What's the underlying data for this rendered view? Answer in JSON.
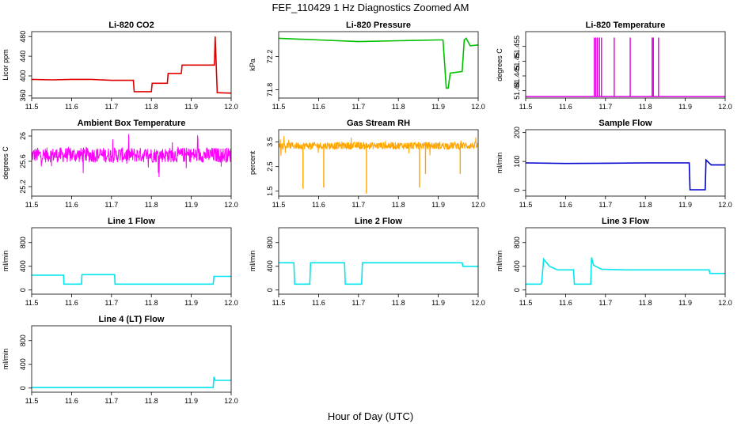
{
  "figure": {
    "title": "FEF_110429 1 Hz Diagnostics Zoomed AM",
    "xlabel": "Hour of Day (UTC)"
  },
  "chart_data": [
    {
      "type": "line",
      "title": "Li-820 CO2",
      "ylabel": "Licor ppm",
      "color": "#e00000",
      "xlim": [
        11.5,
        12.0
      ],
      "ylim": [
        355,
        490
      ],
      "xticks": [
        "11.5",
        "11.6",
        "11.7",
        "11.8",
        "11.9",
        "12.0"
      ],
      "yticks": [
        360,
        400,
        440,
        480
      ],
      "x": [
        11.5,
        11.55,
        11.6,
        11.65,
        11.7,
        11.755,
        11.757,
        11.8,
        11.802,
        11.84,
        11.842,
        11.875,
        11.877,
        11.958,
        11.96,
        11.965,
        12.0
      ],
      "y": [
        393,
        392,
        393,
        393,
        391,
        391,
        368,
        368,
        385,
        385,
        405,
        405,
        422,
        422,
        480,
        366,
        365
      ]
    },
    {
      "type": "line",
      "title": "Li-820 Pressure",
      "ylabel": "kPa",
      "color": "#00c000",
      "xlim": [
        11.5,
        12.0
      ],
      "ylim": [
        71.7,
        72.5
      ],
      "xticks": [
        "11.5",
        "11.6",
        "11.7",
        "11.8",
        "11.9",
        "12.0"
      ],
      "yticks": [
        71.8,
        72.2
      ],
      "x": [
        11.5,
        11.6,
        11.7,
        11.8,
        11.9,
        11.912,
        11.92,
        11.925,
        11.93,
        11.96,
        11.965,
        11.97,
        11.98,
        12.0
      ],
      "y": [
        72.42,
        72.4,
        72.38,
        72.39,
        72.4,
        72.4,
        71.82,
        71.82,
        72.0,
        72.02,
        72.4,
        72.42,
        72.33,
        72.34
      ]
    },
    {
      "type": "line",
      "title": "Li-820 Temperature",
      "ylabel": "degrees C",
      "color": "#e000e0",
      "xlim": [
        11.5,
        12.0
      ],
      "ylim": [
        51.4375,
        51.46
      ],
      "xticks": [
        "11.5",
        "11.6",
        "11.7",
        "11.8",
        "11.9",
        "12.0"
      ],
      "yticks": [
        51.44,
        51.445,
        51.45,
        51.455
      ],
      "baseline": 51.438,
      "spike_top": 51.458,
      "spikes": [
        11.672,
        11.676,
        11.68,
        11.685,
        11.69,
        11.722,
        11.762,
        11.817,
        11.82,
        11.833
      ]
    },
    {
      "type": "line",
      "title": "Ambient Box Temperature",
      "ylabel": "degrees C",
      "color": "#ff00ff",
      "xlim": [
        11.5,
        12.0
      ],
      "ylim": [
        25.05,
        26.1
      ],
      "xticks": [
        "11.5",
        "11.6",
        "11.7",
        "11.8",
        "11.9",
        "12.0"
      ],
      "yticks": [
        25.2,
        25.6,
        26
      ],
      "center": 25.7,
      "band": 0.12
    },
    {
      "type": "line",
      "title": "Gas Stream RH",
      "ylabel": "percent",
      "color": "#ffa500",
      "xlim": [
        11.5,
        12.0
      ],
      "ylim": [
        1.3,
        4.0
      ],
      "xticks": [
        "11.5",
        "11.6",
        "11.7",
        "11.8",
        "11.9",
        "12.0"
      ],
      "yticks": [
        1.5,
        2.5,
        3.5
      ],
      "center": 3.35,
      "band": 0.15,
      "dips": [
        [
          11.561,
          1.6
        ],
        [
          11.613,
          1.65
        ],
        [
          11.72,
          1.4
        ],
        [
          11.853,
          1.65
        ],
        [
          11.868,
          2.2
        ],
        [
          11.955,
          2.2
        ]
      ]
    },
    {
      "type": "line",
      "title": "Sample Flow",
      "ylabel": "ml/min",
      "color": "#0000cc",
      "xlim": [
        11.5,
        12.0
      ],
      "ylim": [
        -20,
        210
      ],
      "xticks": [
        "11.5",
        "11.6",
        "11.7",
        "11.8",
        "11.9",
        "12.0"
      ],
      "yticks": [
        0,
        100,
        200
      ],
      "x": [
        11.5,
        11.6,
        11.7,
        11.8,
        11.91,
        11.912,
        11.95,
        11.952,
        11.965,
        12.0
      ],
      "y": [
        95,
        93,
        94,
        95,
        95,
        2,
        2,
        105,
        88,
        88
      ]
    },
    {
      "type": "line",
      "title": "Line 1 Flow",
      "ylabel": "ml/min",
      "color": "#00e5ee",
      "xlim": [
        11.5,
        12.0
      ],
      "ylim": [
        -70,
        1050
      ],
      "xticks": [
        "11.5",
        "11.6",
        "11.7",
        "11.8",
        "11.9",
        "12.0"
      ],
      "yticks": [
        0,
        400,
        800
      ],
      "x": [
        11.5,
        11.58,
        11.581,
        11.625,
        11.626,
        11.708,
        11.709,
        11.955,
        11.957,
        12.0
      ],
      "y": [
        250,
        250,
        100,
        100,
        260,
        260,
        100,
        100,
        230,
        230
      ]
    },
    {
      "type": "line",
      "title": "Line 2 Flow",
      "ylabel": "ml/min",
      "color": "#00e5ee",
      "xlim": [
        11.5,
        12.0
      ],
      "ylim": [
        -70,
        1050
      ],
      "xticks": [
        "11.5",
        "11.6",
        "11.7",
        "11.8",
        "11.9",
        "12.0"
      ],
      "yticks": [
        0,
        400,
        800
      ],
      "x": [
        11.5,
        11.538,
        11.54,
        11.578,
        11.58,
        11.665,
        11.667,
        11.708,
        11.71,
        11.96,
        11.962,
        12.0
      ],
      "y": [
        460,
        460,
        100,
        100,
        460,
        460,
        100,
        100,
        460,
        460,
        400,
        400
      ]
    },
    {
      "type": "line",
      "title": "Line 3 Flow",
      "ylabel": "ml/min",
      "color": "#00e5ee",
      "xlim": [
        11.5,
        12.0
      ],
      "ylim": [
        -70,
        1050
      ],
      "xticks": [
        "11.5",
        "11.6",
        "11.7",
        "11.8",
        "11.9",
        "12.0"
      ],
      "yticks": [
        0,
        400,
        800
      ],
      "x": [
        11.5,
        11.538,
        11.54,
        11.545,
        11.56,
        11.58,
        11.62,
        11.622,
        11.663,
        11.665,
        11.67,
        11.69,
        11.75,
        11.96,
        11.962,
        12.0
      ],
      "y": [
        100,
        100,
        120,
        520,
        400,
        340,
        340,
        100,
        100,
        550,
        420,
        350,
        340,
        340,
        280,
        280
      ]
    },
    {
      "type": "line",
      "title": "Line 4 (LT) Flow",
      "ylabel": "ml/min",
      "color": "#00e5ee",
      "xlim": [
        11.5,
        12.0
      ],
      "ylim": [
        -70,
        1050
      ],
      "xticks": [
        "11.5",
        "11.6",
        "11.7",
        "11.8",
        "11.9",
        "12.0"
      ],
      "yticks": [
        0,
        400,
        800
      ],
      "x": [
        11.5,
        11.6,
        11.7,
        11.8,
        11.9,
        11.955,
        11.957,
        11.96,
        12.0
      ],
      "y": [
        8,
        8,
        8,
        8,
        8,
        8,
        190,
        130,
        130
      ]
    }
  ]
}
